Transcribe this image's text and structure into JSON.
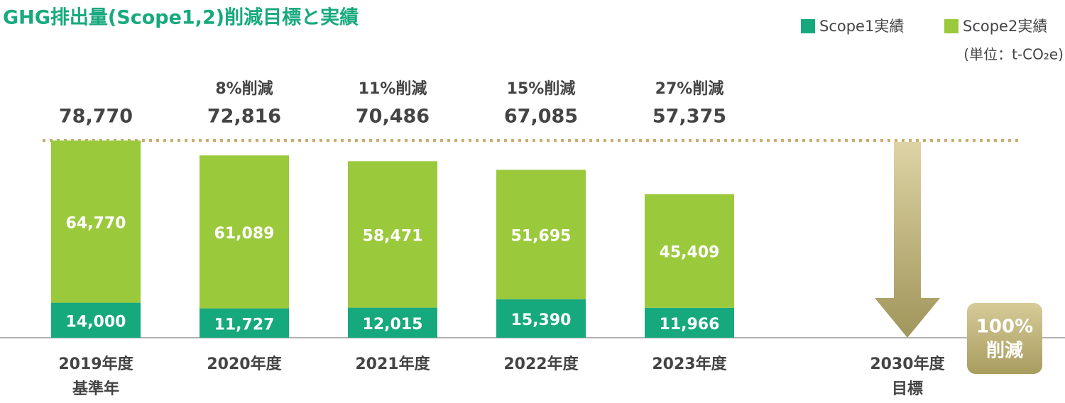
{
  "chart_data": {
    "type": "stacked_bar",
    "title": "GHG排出量(Scope1,2)削減目標と実績",
    "unit": "(単位：t-CO₂e)",
    "categories": [
      "2019年度",
      "2020年度",
      "2021年度",
      "2022年度",
      "2023年度",
      "2030年度"
    ],
    "category_sublabels": [
      "基準年",
      null,
      null,
      null,
      null,
      "目標"
    ],
    "series": [
      {
        "name": "Scope1実績",
        "color": "#17a97e",
        "values": [
          14000,
          11727,
          12015,
          15390,
          11966,
          null
        ],
        "value_labels": [
          "14,000",
          "11,727",
          "12,015",
          "15,390",
          "11,966",
          null
        ]
      },
      {
        "name": "Scope2実績",
        "color": "#9bc93c",
        "values": [
          64770,
          61089,
          58471,
          51695,
          45409,
          null
        ],
        "value_labels": [
          "64,770",
          "61,089",
          "58,471",
          "51,695",
          "45,409",
          null
        ]
      }
    ],
    "totals": [
      78770,
      72816,
      70486,
      67085,
      57375,
      null
    ],
    "total_labels": [
      "78,770",
      "72,816",
      "70,486",
      "67,085",
      "57,375",
      null
    ],
    "reductions": [
      null,
      8,
      11,
      15,
      27,
      100
    ],
    "reduction_labels": [
      null,
      "8%削減",
      "11%削減",
      "15%削減",
      "27%削減",
      null
    ],
    "target_label": [
      "100%",
      "削減"
    ],
    "ylim": [
      0,
      80000
    ]
  }
}
